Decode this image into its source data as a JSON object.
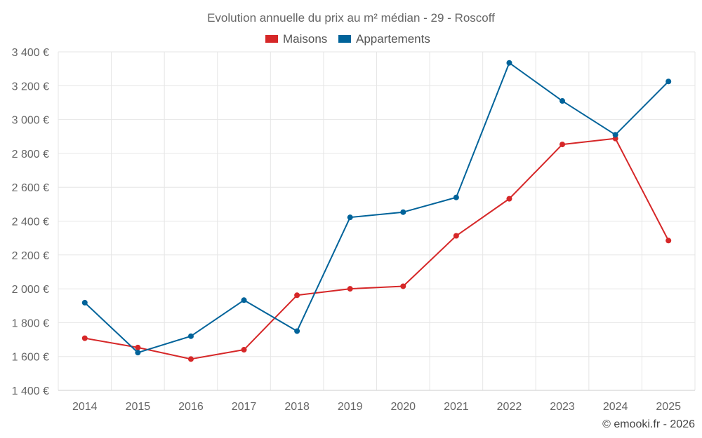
{
  "chart_data": {
    "type": "line",
    "title": "Evolution annuelle du prix au m² médian - 29 - Roscoff",
    "categories": [
      "2014",
      "2015",
      "2016",
      "2017",
      "2018",
      "2019",
      "2020",
      "2021",
      "2022",
      "2023",
      "2024",
      "2025"
    ],
    "series": [
      {
        "name": "Maisons",
        "color": "#d62728",
        "values": [
          1708,
          1653,
          1585,
          1640,
          1962,
          2000,
          2015,
          2313,
          2532,
          2853,
          2888,
          2285
        ]
      },
      {
        "name": "Appartements",
        "color": "#00639a",
        "values": [
          1918,
          1623,
          1720,
          1933,
          1750,
          2422,
          2453,
          2540,
          3335,
          3110,
          2910,
          3225
        ]
      }
    ],
    "ylim": [
      1400,
      3400
    ],
    "yticks": [
      1400,
      1600,
      1800,
      2000,
      2200,
      2400,
      2600,
      2800,
      3000,
      3200,
      3400
    ],
    "ytick_labels": [
      "1 400 €",
      "1 600 €",
      "1 800 €",
      "2 000 €",
      "2 200 €",
      "2 400 €",
      "2 600 €",
      "2 800 €",
      "3 000 €",
      "3 200 €",
      "3 400 €"
    ],
    "xlabel": "",
    "ylabel": "",
    "grid": true,
    "legend_position": "top-center"
  },
  "credit": "© emooki.fr - 2026"
}
